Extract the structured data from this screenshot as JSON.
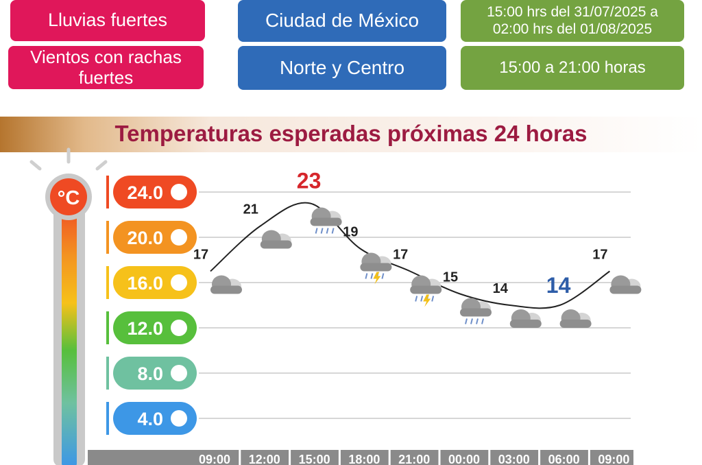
{
  "header": {
    "phenomena": [
      "Lluvias fuertes",
      "Vientos con rachas fuertes"
    ],
    "regions": [
      "Ciudad de México",
      "Norte y Centro"
    ],
    "periods": [
      "15:00 hrs del 31/07/2025 a 02:00 hrs  del 01/08/2025",
      "15:00 a 21:00 horas"
    ]
  },
  "banner": {
    "title": "Temperaturas esperadas próximas 24 horas"
  },
  "thermometer": {
    "unit": "°C"
  },
  "colors": {
    "pink": "#e0175a",
    "blue": "#2f6bb8",
    "green": "#74a341",
    "title": "#9c1b41",
    "max": "#d6262b",
    "min": "#2e5da8"
  },
  "chart_data": {
    "type": "line",
    "title": "Temperaturas esperadas próximas 24 horas",
    "x": [
      "09:00",
      "12:00",
      "15:00",
      "18:00",
      "21:00",
      "00:00",
      "03:00",
      "06:00",
      "09:00"
    ],
    "series": [
      {
        "values": [
          17,
          21,
          23,
          19,
          17,
          15,
          14,
          14,
          17
        ]
      }
    ],
    "y_ticks": [
      "24.0",
      "20.0",
      "16.0",
      "12.0",
      "8.0",
      "4.0"
    ],
    "tick_colors": [
      "#ef4a23",
      "#f39321",
      "#f6c11a",
      "#57bf3c",
      "#6fc1a0",
      "#3d97e6"
    ],
    "max_label": "23",
    "min_label": "14",
    "icons": [
      "cloudy",
      "cloudy",
      "rain",
      "storm",
      "storm",
      "rain",
      "cloudy",
      "cloudy",
      "cloudy"
    ],
    "grid": true
  }
}
